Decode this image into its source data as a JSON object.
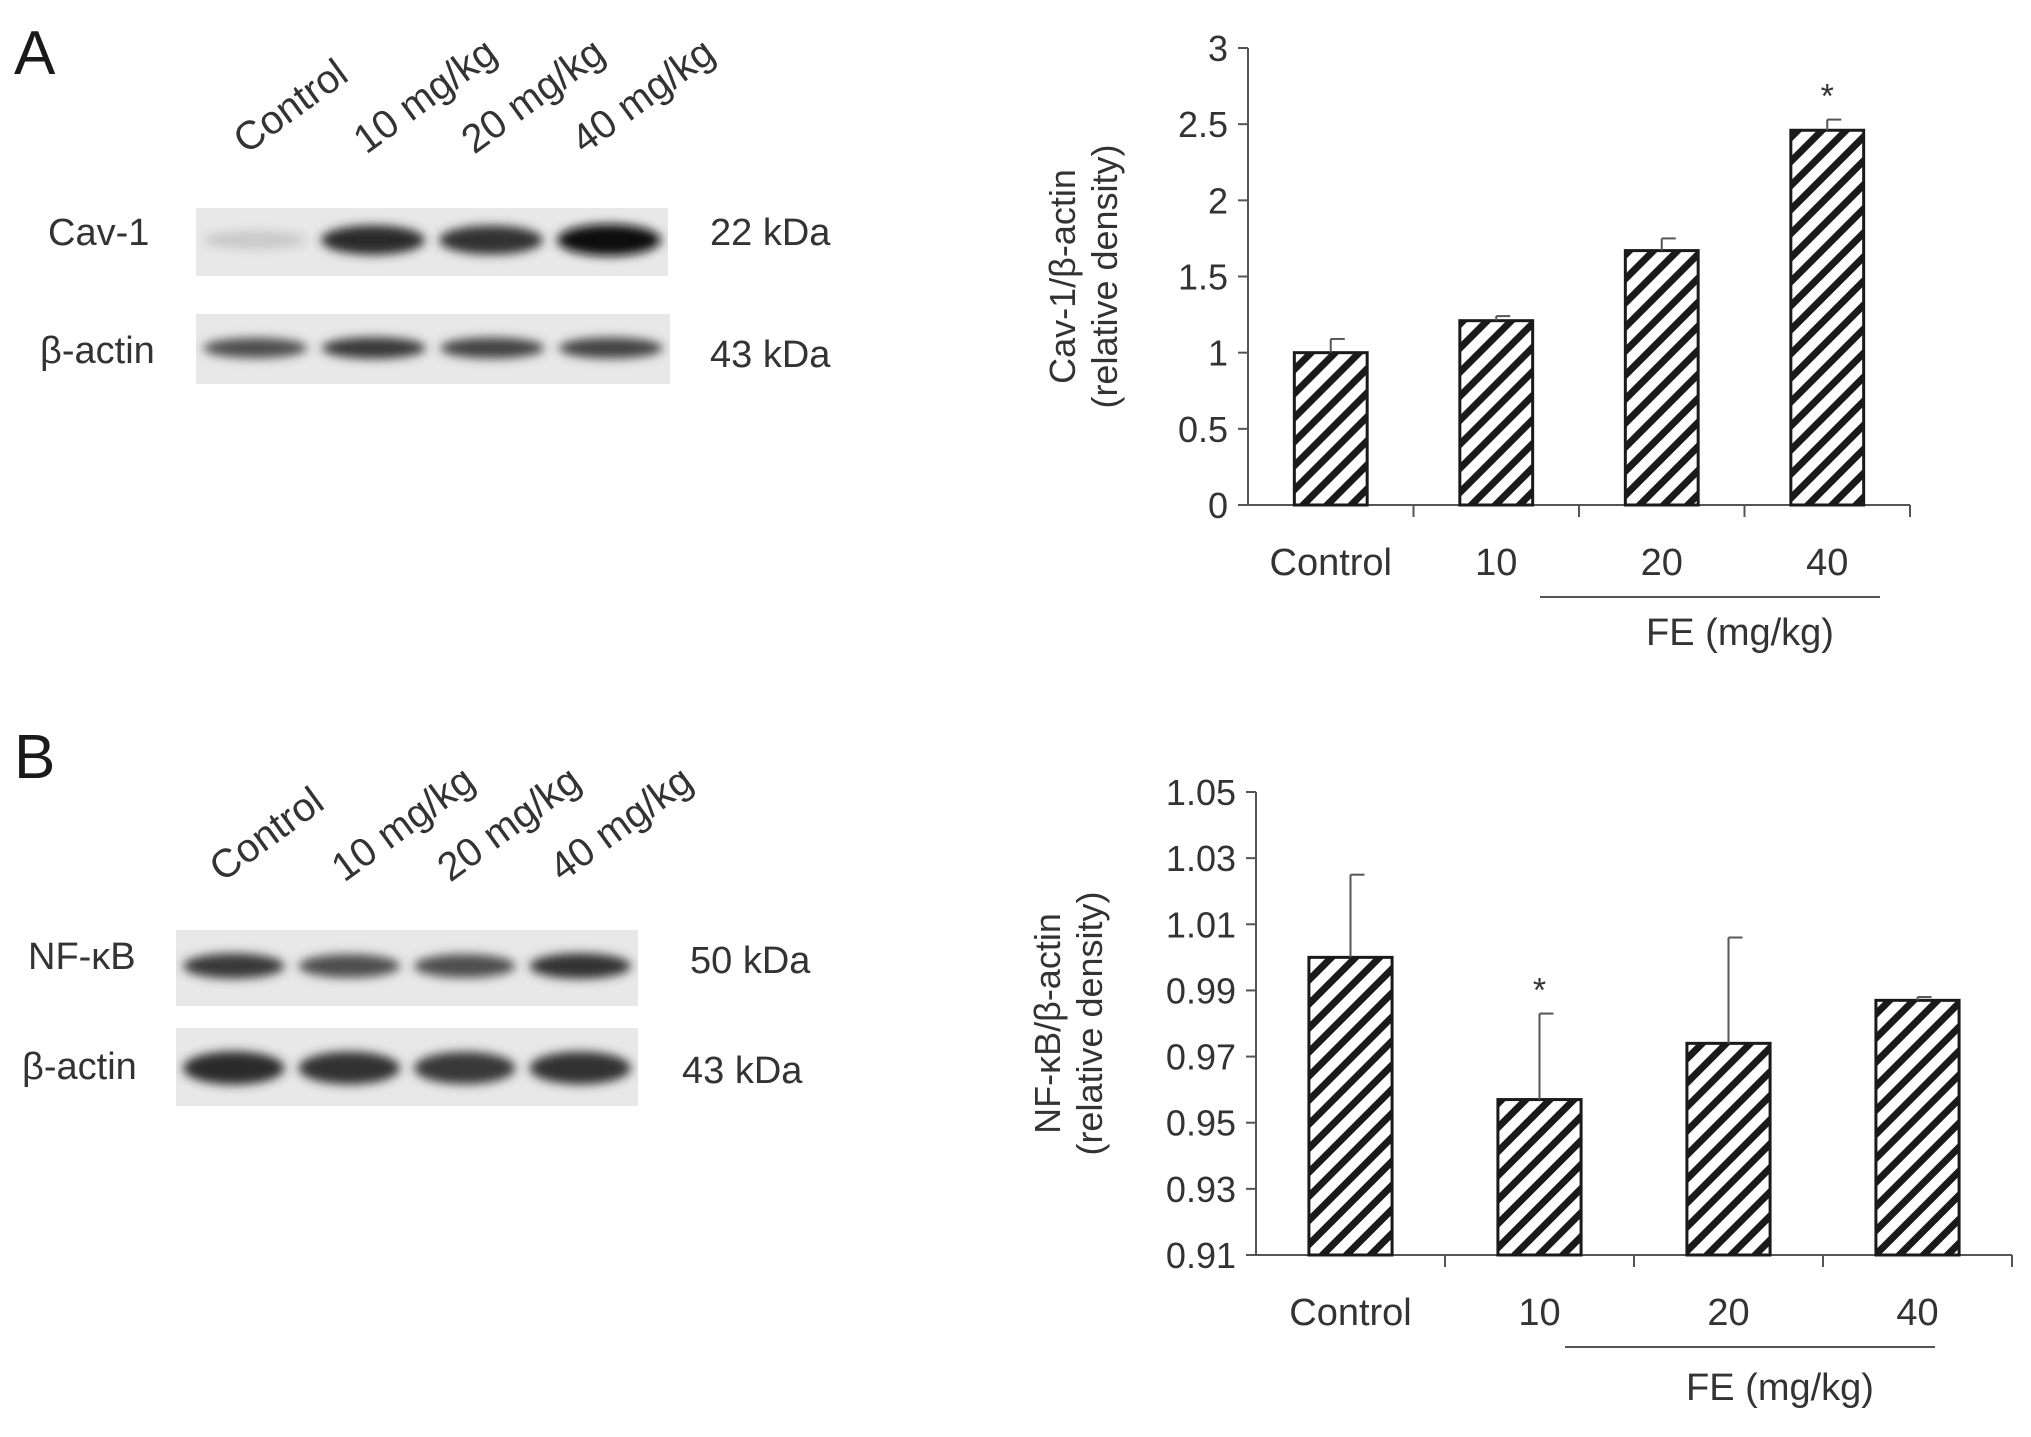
{
  "panels": [
    {
      "letter": "A",
      "blot": {
        "lanes": [
          "Control",
          "10 mg/kg",
          "20 mg/kg",
          "40 mg/kg"
        ],
        "rows": [
          {
            "protein": "Cav-1",
            "mw": "22 kDa",
            "intensity": [
              0.15,
              0.85,
              0.82,
              0.98
            ]
          },
          {
            "protein": "β-actin",
            "mw": "43 kDa",
            "intensity": [
              0.7,
              0.8,
              0.75,
              0.75
            ]
          }
        ]
      }
    },
    {
      "letter": "B",
      "blot": {
        "lanes": [
          "Control",
          "10 mg/kg",
          "20 mg/kg",
          "40 mg/kg"
        ],
        "rows": [
          {
            "protein": "NF-κB",
            "mw": "50 kDa",
            "intensity": [
              0.8,
              0.7,
              0.7,
              0.82
            ]
          },
          {
            "protein": "β-actin",
            "mw": "43 kDa",
            "intensity": [
              0.85,
              0.82,
              0.8,
              0.82
            ]
          }
        ]
      }
    }
  ],
  "chart_data": [
    {
      "type": "bar",
      "categories": [
        "Control",
        "10",
        "20",
        "40"
      ],
      "values": [
        1.0,
        1.21,
        1.67,
        2.46
      ],
      "errors": [
        0.09,
        0.03,
        0.08,
        0.07
      ],
      "significance": [
        "",
        "",
        "",
        "*"
      ],
      "ylabel_line1": "Cav-1/β-actin",
      "ylabel_line2": "(relative density)",
      "xlabel": "FE  (mg/kg)",
      "ylim": [
        0,
        3
      ],
      "yticks": [
        0,
        0.5,
        1,
        1.5,
        2,
        2.5,
        3
      ],
      "ytick_labels": [
        "0",
        "0.5",
        "1",
        "1.5",
        "2",
        "2.5",
        "3"
      ],
      "bar_pattern": "diagonal-hatch",
      "grid": false
    },
    {
      "type": "bar",
      "categories": [
        "Control",
        "10",
        "20",
        "40"
      ],
      "values": [
        1.0,
        0.957,
        0.974,
        0.987
      ],
      "errors": [
        0.025,
        0.026,
        0.032,
        0.001
      ],
      "significance": [
        "",
        "*",
        "",
        ""
      ],
      "ylabel_line1": "NF-κB/β-actin",
      "ylabel_line2": "(relative density)",
      "xlabel": "FE  (mg/kg)",
      "ylim": [
        0.91,
        1.05
      ],
      "yticks": [
        0.91,
        0.93,
        0.95,
        0.97,
        0.99,
        1.01,
        1.03,
        1.05
      ],
      "ytick_labels": [
        "0.91",
        "0.93",
        "0.95",
        "0.97",
        "0.99",
        "1.01",
        "1.03",
        "1.05"
      ],
      "bar_pattern": "diagonal-hatch",
      "grid": false
    }
  ]
}
